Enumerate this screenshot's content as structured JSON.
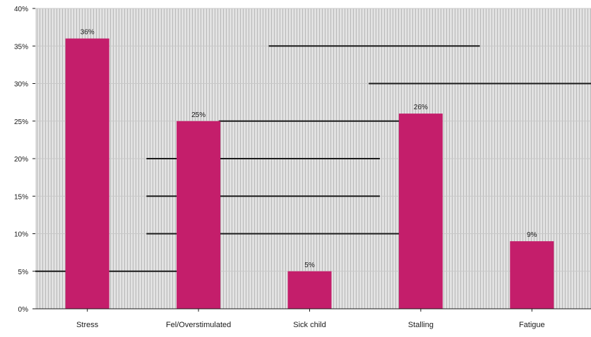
{
  "colors": {
    "bar": "#c41e6b",
    "plot_background": "#dedede",
    "rule": "#1a1a1a",
    "text": "#1a1a1a"
  },
  "chart_data": {
    "type": "bar",
    "categories": [
      "Stress",
      "Fel/Overstimulated",
      "Sick child",
      "Stalling",
      "Fatigue"
    ],
    "values": [
      36,
      25,
      5,
      26,
      9
    ],
    "data_labels": [
      "36%",
      "25%",
      "5%",
      "26%",
      "9%"
    ],
    "y_tick_labels": [
      "0%",
      "5%",
      "10%",
      "15%",
      "20%",
      "25%",
      "30%",
      "35%",
      "40%"
    ],
    "ylim": [
      0,
      40
    ],
    "grid": true,
    "legend": "none",
    "title": "",
    "xlabel": "",
    "ylabel": ""
  }
}
